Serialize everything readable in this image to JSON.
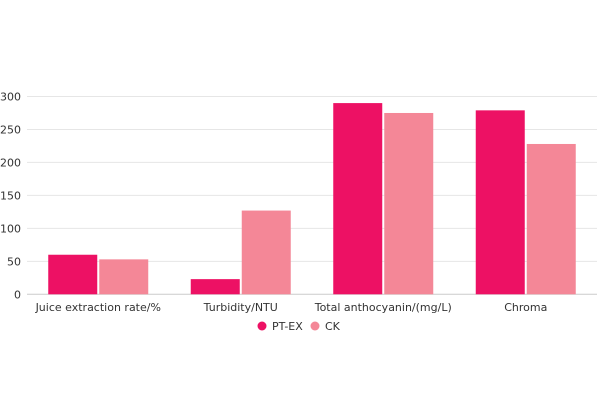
{
  "chart_data": {
    "type": "bar",
    "categories": [
      "Juice extraction rate/%",
      "Turbidity/NTU",
      "Total anthocyanin/(mg/L)",
      "Chroma"
    ],
    "series": [
      {
        "name": "PT-EX",
        "color": "#ED1164",
        "values": [
          60,
          23,
          290,
          279
        ]
      },
      {
        "name": "CK",
        "color": "#F48797",
        "values": [
          53,
          127,
          275,
          228
        ]
      }
    ],
    "ylim": [
      0,
      300
    ],
    "yticks": [
      0,
      50,
      100,
      150,
      200,
      250,
      300
    ],
    "grid": true,
    "legend_position": "bottom",
    "title": "",
    "xlabel": "",
    "ylabel": ""
  }
}
